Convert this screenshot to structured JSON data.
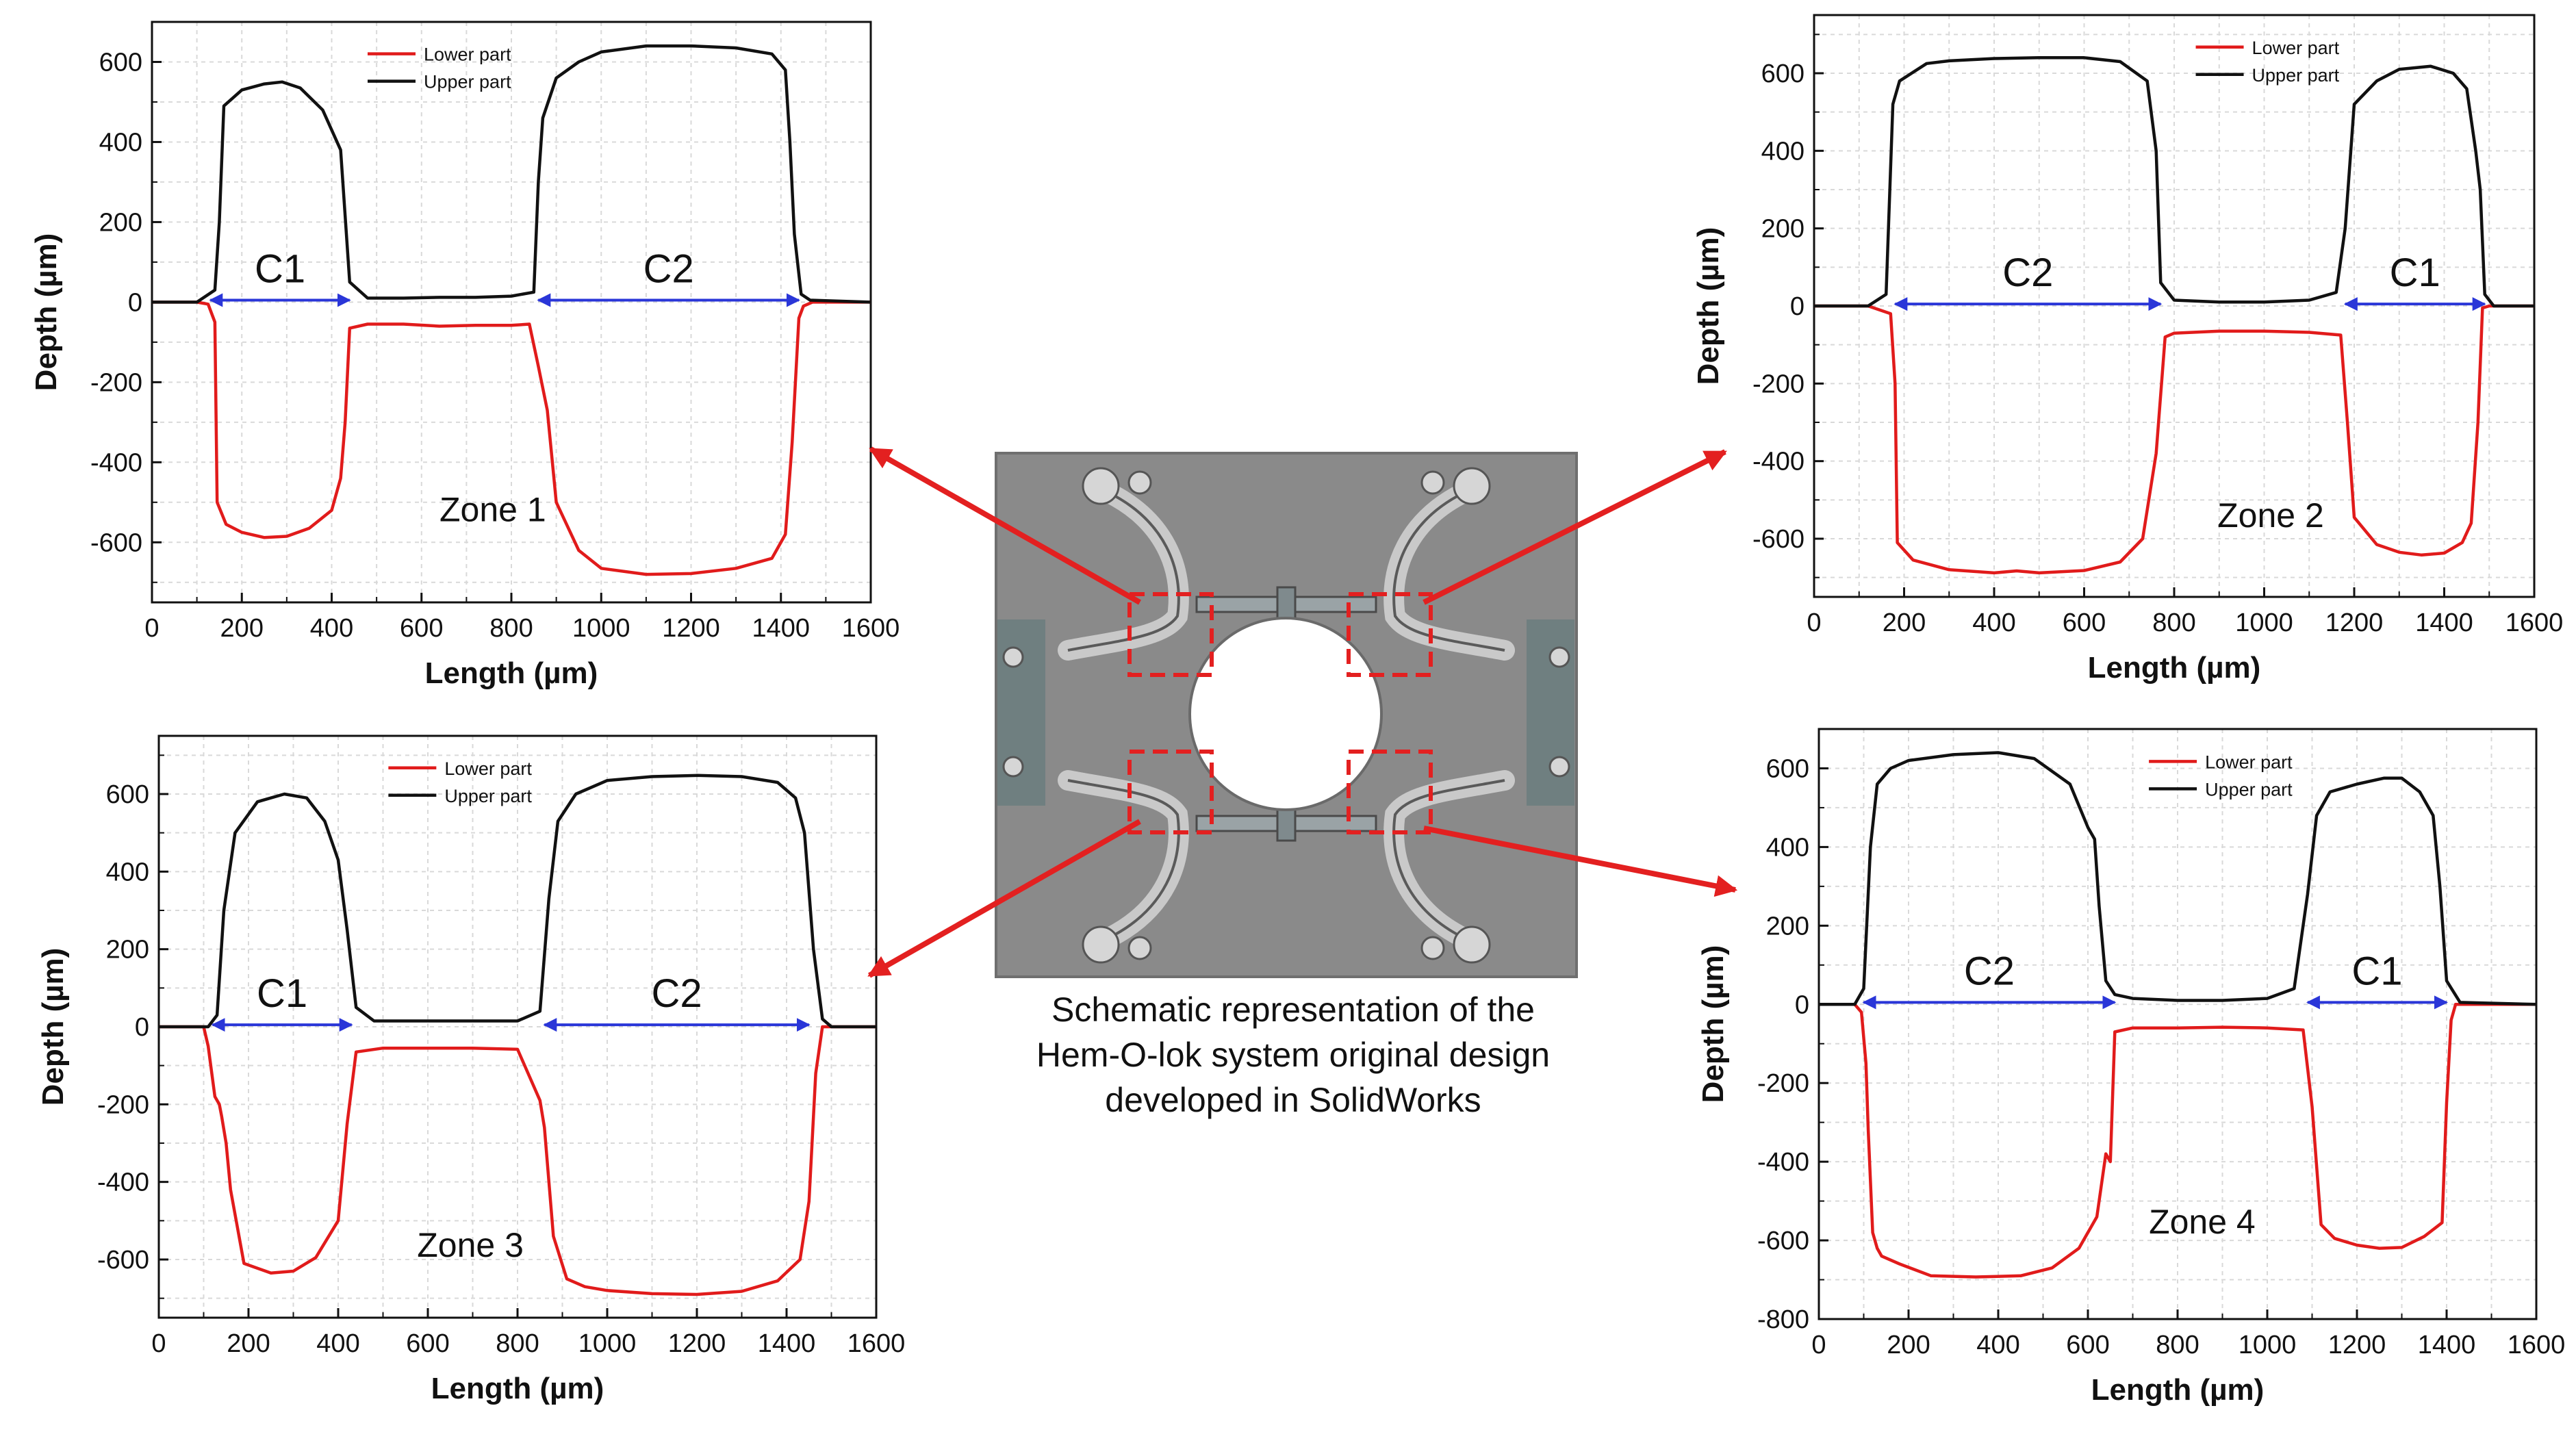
{
  "figure": {
    "caption": [
      "Schematic representation of the",
      "Hem-O-lok system original design",
      "developed in SolidWorks"
    ],
    "schematic_label": "Hem-O-lok clip schematic (SolidWorks)",
    "colors": {
      "upper": "#111111",
      "lower": "#e11b1b",
      "span_arrow": "#2a36d8",
      "callout": "#e32020",
      "grid": "#d9d9d9"
    }
  },
  "chart_data": [
    {
      "id": "zone1",
      "type": "line",
      "zone_label": "Zone 1",
      "xlabel": "Length (µm)",
      "ylabel": "Depth (µm)",
      "xlim": [
        0,
        1600
      ],
      "ylim": [
        -750,
        700
      ],
      "xticks": [
        0,
        200,
        400,
        600,
        800,
        1000,
        1200,
        1400,
        1600
      ],
      "yticks": [
        -600,
        -400,
        -200,
        0,
        200,
        400,
        600
      ],
      "legend": [
        "Lower part",
        "Upper part"
      ],
      "series": [
        {
          "name": "Lower part",
          "x": [
            0,
            100,
            125,
            140,
            145,
            165,
            200,
            250,
            300,
            350,
            400,
            420,
            430,
            440,
            480,
            560,
            640,
            720,
            800,
            840,
            860,
            880,
            900,
            950,
            1000,
            1100,
            1200,
            1300,
            1380,
            1410,
            1425,
            1440,
            1450,
            1470,
            1600
          ],
          "y": [
            0,
            0,
            -5,
            -50,
            -500,
            -555,
            -575,
            -588,
            -585,
            -565,
            -520,
            -440,
            -300,
            -65,
            -55,
            -55,
            -60,
            -58,
            -58,
            -55,
            -160,
            -270,
            -500,
            -620,
            -665,
            -680,
            -678,
            -665,
            -640,
            -580,
            -350,
            -40,
            -10,
            0,
            0
          ]
        },
        {
          "name": "Upper part",
          "x": [
            0,
            100,
            140,
            150,
            160,
            200,
            250,
            290,
            330,
            380,
            420,
            440,
            480,
            560,
            640,
            720,
            800,
            850,
            860,
            870,
            900,
            950,
            1000,
            1100,
            1200,
            1300,
            1380,
            1410,
            1420,
            1430,
            1445,
            1465,
            1600
          ],
          "y": [
            0,
            0,
            30,
            200,
            490,
            530,
            545,
            550,
            535,
            480,
            380,
            50,
            10,
            10,
            12,
            12,
            15,
            25,
            300,
            460,
            560,
            600,
            625,
            640,
            640,
            635,
            620,
            580,
            400,
            170,
            20,
            5,
            0
          ]
        }
      ],
      "spans": [
        {
          "label": "C1",
          "x_from": 130,
          "x_to": 440,
          "y": 5
        },
        {
          "label": "C2",
          "x_from": 860,
          "x_to": 1440,
          "y": 5
        }
      ]
    },
    {
      "id": "zone2",
      "type": "line",
      "zone_label": "Zone 2",
      "xlabel": "Length (µm)",
      "ylabel": "Depth (µm)",
      "xlim": [
        0,
        1600
      ],
      "ylim": [
        -750,
        750
      ],
      "xticks": [
        0,
        200,
        400,
        600,
        800,
        1000,
        1200,
        1400,
        1600
      ],
      "yticks": [
        -600,
        -400,
        -200,
        0,
        200,
        400,
        600
      ],
      "legend": [
        "Lower part",
        "Upper part"
      ],
      "series": [
        {
          "name": "Lower part",
          "x": [
            0,
            120,
            170,
            180,
            185,
            220,
            300,
            400,
            450,
            500,
            600,
            680,
            730,
            760,
            780,
            800,
            900,
            1000,
            1100,
            1170,
            1185,
            1200,
            1250,
            1300,
            1350,
            1400,
            1440,
            1460,
            1475,
            1485,
            1500,
            1600
          ],
          "y": [
            0,
            0,
            -20,
            -200,
            -610,
            -655,
            -680,
            -688,
            -683,
            -688,
            -682,
            -660,
            -600,
            -380,
            -80,
            -70,
            -65,
            -65,
            -68,
            -75,
            -300,
            -545,
            -615,
            -635,
            -642,
            -637,
            -610,
            -560,
            -300,
            -5,
            0,
            0
          ]
        },
        {
          "name": "Upper part",
          "x": [
            0,
            120,
            160,
            175,
            190,
            250,
            300,
            400,
            500,
            600,
            680,
            740,
            760,
            770,
            800,
            900,
            1000,
            1100,
            1160,
            1180,
            1200,
            1250,
            1300,
            1370,
            1420,
            1450,
            1470,
            1480,
            1490,
            1510,
            1600
          ],
          "y": [
            0,
            0,
            30,
            520,
            580,
            625,
            632,
            638,
            640,
            640,
            630,
            580,
            400,
            60,
            15,
            10,
            10,
            15,
            35,
            200,
            520,
            580,
            610,
            618,
            600,
            560,
            400,
            300,
            30,
            0,
            0
          ]
        }
      ],
      "spans": [
        {
          "label": "C2",
          "x_from": 180,
          "x_to": 770,
          "y": 5
        },
        {
          "label": "C1",
          "x_from": 1180,
          "x_to": 1490,
          "y": 5
        }
      ]
    },
    {
      "id": "zone3",
      "type": "line",
      "zone_label": "Zone 3",
      "xlabel": "Length (µm)",
      "ylabel": "Depth (µm)",
      "xlim": [
        0,
        1600
      ],
      "ylim": [
        -750,
        750
      ],
      "xticks": [
        0,
        200,
        400,
        600,
        800,
        1000,
        1200,
        1400,
        1600
      ],
      "yticks": [
        -600,
        -400,
        -200,
        0,
        200,
        400,
        600
      ],
      "legend": [
        "Lower part",
        "Upper part"
      ],
      "series": [
        {
          "name": "Lower part",
          "x": [
            0,
            100,
            110,
            125,
            135,
            140,
            150,
            160,
            190,
            250,
            300,
            350,
            400,
            420,
            440,
            500,
            600,
            700,
            800,
            850,
            860,
            880,
            910,
            950,
            1000,
            1100,
            1200,
            1300,
            1380,
            1430,
            1450,
            1465,
            1480,
            1600
          ],
          "y": [
            0,
            0,
            -50,
            -180,
            -200,
            -230,
            -300,
            -420,
            -610,
            -635,
            -630,
            -595,
            -500,
            -250,
            -65,
            -55,
            -55,
            -55,
            -58,
            -190,
            -260,
            -540,
            -650,
            -670,
            -680,
            -688,
            -690,
            -682,
            -655,
            -600,
            -450,
            -120,
            0,
            0
          ]
        },
        {
          "name": "Upper part",
          "x": [
            0,
            110,
            130,
            145,
            170,
            220,
            280,
            330,
            370,
            400,
            420,
            440,
            480,
            600,
            700,
            800,
            850,
            870,
            890,
            930,
            1000,
            1100,
            1200,
            1300,
            1380,
            1420,
            1440,
            1460,
            1480,
            1500,
            1600
          ],
          "y": [
            0,
            0,
            30,
            300,
            500,
            580,
            600,
            590,
            530,
            430,
            250,
            50,
            15,
            15,
            15,
            15,
            40,
            330,
            530,
            600,
            635,
            645,
            648,
            645,
            630,
            590,
            500,
            200,
            20,
            0,
            0
          ]
        }
      ],
      "spans": [
        {
          "label": "C1",
          "x_from": 120,
          "x_to": 430,
          "y": 5
        },
        {
          "label": "C2",
          "x_from": 860,
          "x_to": 1450,
          "y": 5
        }
      ]
    },
    {
      "id": "zone4",
      "type": "line",
      "zone_label": "Zone 4",
      "xlabel": "Length (µm)",
      "ylabel": "Depth (µm)",
      "xlim": [
        0,
        1600
      ],
      "ylim": [
        -800,
        700
      ],
      "xticks": [
        0,
        200,
        400,
        600,
        800,
        1000,
        1200,
        1400,
        1600
      ],
      "yticks": [
        -800,
        -600,
        -400,
        -200,
        0,
        200,
        400,
        600
      ],
      "legend": [
        "Lower part",
        "Upper part"
      ],
      "series": [
        {
          "name": "Lower part",
          "x": [
            0,
            80,
            95,
            105,
            110,
            120,
            130,
            140,
            180,
            250,
            350,
            450,
            520,
            580,
            620,
            640,
            650,
            660,
            700,
            800,
            900,
            1000,
            1080,
            1100,
            1120,
            1150,
            1200,
            1250,
            1300,
            1350,
            1390,
            1400,
            1410,
            1420,
            1600
          ],
          "y": [
            0,
            0,
            -20,
            -150,
            -320,
            -580,
            -620,
            -640,
            -660,
            -690,
            -693,
            -690,
            -670,
            -620,
            -540,
            -380,
            -400,
            -70,
            -60,
            -60,
            -58,
            -60,
            -65,
            -260,
            -560,
            -595,
            -612,
            -620,
            -618,
            -590,
            -555,
            -250,
            -40,
            0,
            0
          ]
        },
        {
          "name": "Upper part",
          "x": [
            0,
            80,
            100,
            115,
            130,
            160,
            200,
            300,
            400,
            480,
            560,
            600,
            615,
            625,
            640,
            660,
            700,
            800,
            900,
            1000,
            1060,
            1090,
            1110,
            1140,
            1200,
            1260,
            1300,
            1340,
            1370,
            1385,
            1400,
            1430,
            1600
          ],
          "y": [
            0,
            0,
            40,
            400,
            560,
            600,
            620,
            635,
            640,
            625,
            560,
            450,
            420,
            250,
            60,
            25,
            15,
            10,
            10,
            15,
            40,
            280,
            480,
            540,
            560,
            575,
            575,
            540,
            480,
            300,
            60,
            5,
            0
          ]
        }
      ],
      "spans": [
        {
          "label": "C2",
          "x_from": 100,
          "x_to": 660,
          "y": 5
        },
        {
          "label": "C1",
          "x_from": 1090,
          "x_to": 1400,
          "y": 5
        }
      ]
    }
  ]
}
